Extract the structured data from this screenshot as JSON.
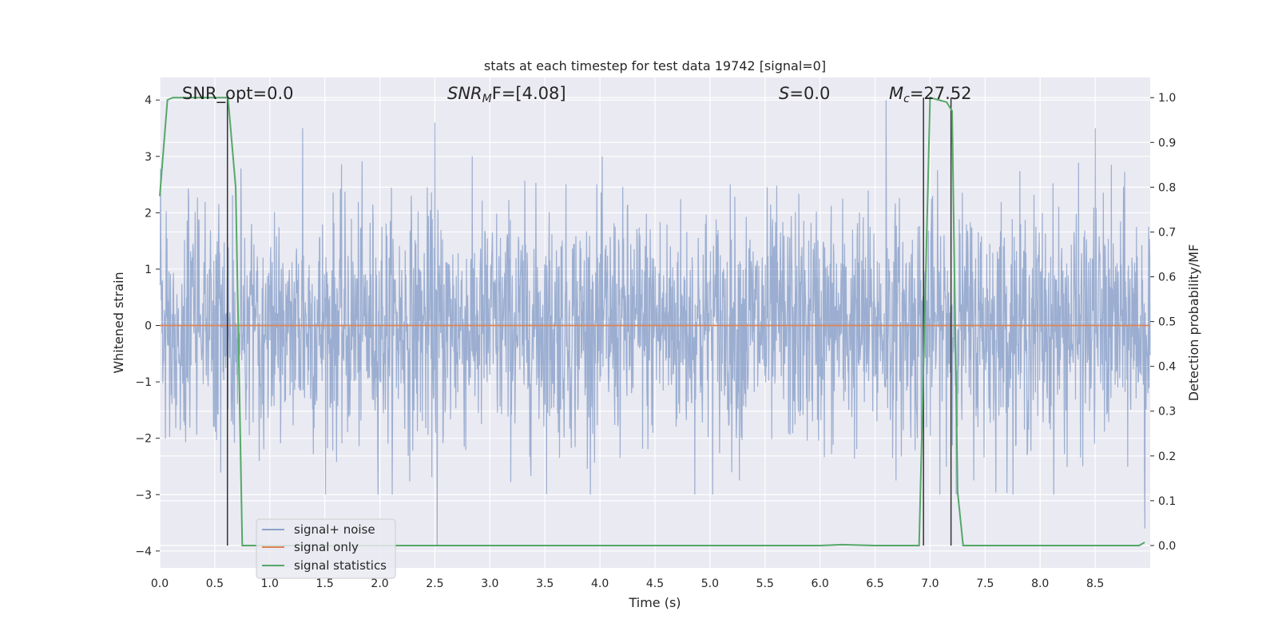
{
  "chart_data": {
    "type": "line",
    "title": "stats at each timestep for test data 19742 [signal=0]",
    "xlabel": "Time (s)",
    "ylabel": "Whitened strain",
    "y2label": "Detection probability/MF",
    "xlim": [
      0.0,
      9.0
    ],
    "ylim": [
      -4.3,
      4.4
    ],
    "y2lim": [
      -0.05,
      1.045
    ],
    "xticks": [
      "0.0",
      "0.5",
      "1.0",
      "1.5",
      "2.0",
      "2.5",
      "3.0",
      "3.5",
      "4.0",
      "4.5",
      "5.0",
      "5.5",
      "6.0",
      "6.5",
      "7.0",
      "7.5",
      "8.0",
      "8.5"
    ],
    "xtick_values": [
      0,
      0.5,
      1,
      1.5,
      2,
      2.5,
      3,
      3.5,
      4,
      4.5,
      5,
      5.5,
      6,
      6.5,
      7,
      7.5,
      8,
      8.5
    ],
    "yticks": [
      "−4",
      "−3",
      "−2",
      "−1",
      "0",
      "1",
      "2",
      "3",
      "4"
    ],
    "ytick_values": [
      -4,
      -3,
      -2,
      -1,
      0,
      1,
      2,
      3,
      4
    ],
    "y2ticks": [
      "0.0",
      "0.1",
      "0.2",
      "0.3",
      "0.4",
      "0.5",
      "0.6",
      "0.7",
      "0.8",
      "0.9",
      "1.0"
    ],
    "y2tick_values": [
      0,
      0.1,
      0.2,
      0.3,
      0.4,
      0.5,
      0.6,
      0.7,
      0.8,
      0.9,
      1.0
    ],
    "grid": true,
    "legend_position": "lower-left",
    "annotations": {
      "snr_opt": "SNR_opt=0.0",
      "snr_mf_base": "SNR",
      "snr_mf_sub": "M",
      "snr_mf_rest": "F=[4.08]",
      "s_var": "S",
      "s_rest": "=0.0",
      "mc_var": "M",
      "mc_sub": "c",
      "mc_rest": "=27.52"
    },
    "series": [
      {
        "name": "signal+ noise",
        "color": "#4c72b0",
        "style": "dense noise, approx amplitude range -3.9 to 3.9",
        "notable_peaks": [
          {
            "x": 1.3,
            "y": 3.5
          },
          {
            "x": 2.5,
            "y": 3.6
          },
          {
            "x": 6.6,
            "y": 4.0
          },
          {
            "x": 8.5,
            "y": 3.5
          },
          {
            "x": 2.52,
            "y": -3.9
          },
          {
            "x": 8.95,
            "y": -3.6
          }
        ]
      },
      {
        "name": "signal only",
        "color": "#dd8452",
        "x": [
          0.0,
          9.0
        ],
        "y": [
          0.0,
          0.0
        ]
      },
      {
        "name": "signal statistics",
        "color": "#55a868",
        "axis": "right",
        "x": [
          0.0,
          0.07,
          0.12,
          0.2,
          0.3,
          0.6,
          0.62,
          0.69,
          0.75,
          1.0,
          2.0,
          3.0,
          4.0,
          5.0,
          6.0,
          6.2,
          6.5,
          6.9,
          6.95,
          7.0,
          7.15,
          7.2,
          7.25,
          7.3,
          7.5,
          8.0,
          8.5,
          8.9,
          8.95
        ],
        "y": [
          0.78,
          0.995,
          1.0,
          1.0,
          1.0,
          1.0,
          1.0,
          0.8,
          0.0,
          0.0,
          0.0,
          0.0,
          0.0,
          0.0,
          0.0,
          0.002,
          0.0,
          0.0,
          0.5,
          1.0,
          0.99,
          0.97,
          0.12,
          0.0,
          0.0,
          0.0,
          0.0,
          0.0,
          0.007
        ]
      }
    ],
    "vertical_markers": [
      {
        "x": 0.615,
        "y2_from": 0.0,
        "y2_to": 1.0,
        "color": "#333333"
      },
      {
        "x": 6.94,
        "y2_from": 0.0,
        "y2_to": 1.0,
        "color": "#333333"
      },
      {
        "x": 7.19,
        "y2_from": 0.0,
        "y2_to": 1.0,
        "color": "#333333"
      }
    ],
    "colors": {
      "plot_background": "#eaeaf2",
      "grid": "#ffffff",
      "figure_background": "#ffffff"
    }
  }
}
